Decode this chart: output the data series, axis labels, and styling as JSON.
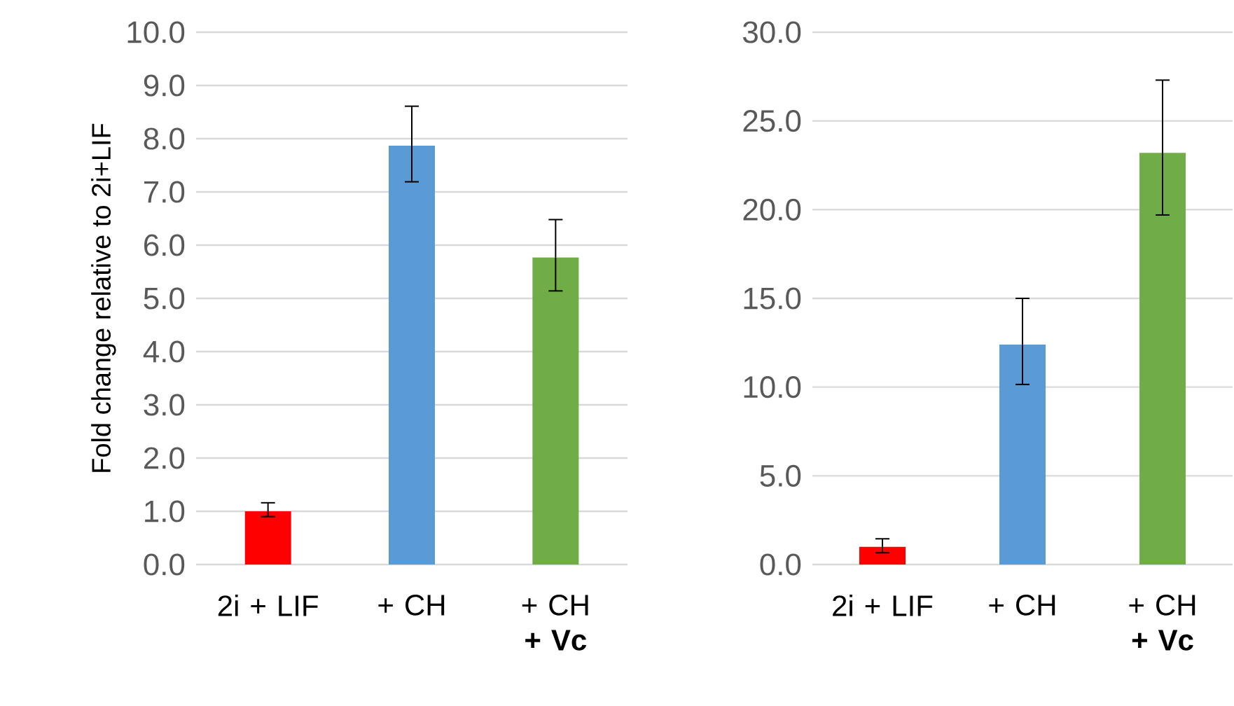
{
  "chart_data": [
    {
      "type": "bar",
      "ylabel": "Fold change relative to 2i+LIF",
      "categories": [
        "2i + LIF",
        "+ CH",
        "+ CH **+ Vc**"
      ],
      "values": [
        1.0,
        7.87,
        5.77
      ],
      "colors": [
        "#ff0000",
        "#5b9bd5",
        "#70ad47"
      ],
      "errors": [
        [
          0.9,
          1.16
        ],
        [
          7.19,
          8.61
        ],
        [
          5.14,
          6.48
        ]
      ],
      "ylim": [
        0,
        10
      ],
      "yticks": [
        {
          "value": 0,
          "label": "0.0"
        },
        {
          "value": 1,
          "label": "1.0"
        },
        {
          "value": 2,
          "label": "2.0"
        },
        {
          "value": 3,
          "label": "3.0"
        },
        {
          "value": 4,
          "label": "4.0"
        },
        {
          "value": 5,
          "label": "5.0"
        },
        {
          "value": 6,
          "label": "6.0"
        },
        {
          "value": 7,
          "label": "7.0"
        },
        {
          "value": 8,
          "label": "8.0"
        },
        {
          "value": 9,
          "label": "9.0"
        },
        {
          "value": 10,
          "label": "10.0"
        }
      ],
      "grid": "y"
    },
    {
      "type": "bar",
      "categories": [
        "2i + LIF",
        "+ CH",
        "+ CH **+ Vc**"
      ],
      "values": [
        1.0,
        12.4,
        23.2
      ],
      "colors": [
        "#ff0000",
        "#5b9bd5",
        "#70ad47"
      ],
      "errors": [
        [
          0.66,
          1.45
        ],
        [
          10.15,
          15.0
        ],
        [
          19.7,
          27.3
        ]
      ],
      "ylim": [
        0,
        30
      ],
      "yticks": [
        {
          "value": 0,
          "label": "0.0"
        },
        {
          "value": 5,
          "label": "5.0"
        },
        {
          "value": 10,
          "label": "10.0"
        },
        {
          "value": 15,
          "label": "15.0"
        },
        {
          "value": 20,
          "label": "20.0"
        },
        {
          "value": 25,
          "label": "25.0"
        },
        {
          "value": 30,
          "label": "30.0"
        }
      ],
      "grid": "y"
    }
  ]
}
